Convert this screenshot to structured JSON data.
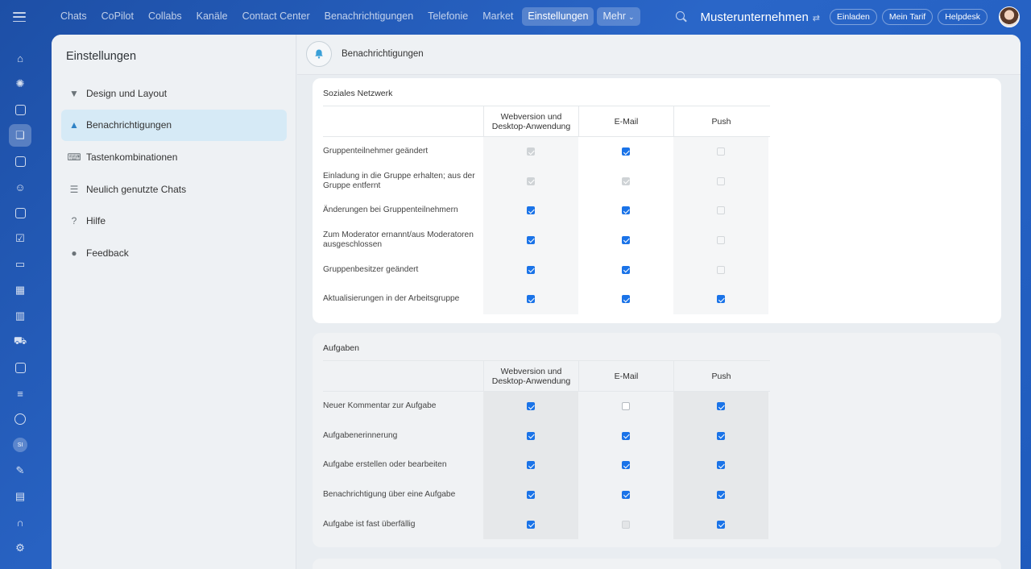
{
  "topbar": {
    "nav": [
      "Chats",
      "CoPilot",
      "Collabs",
      "Kanäle",
      "Contact Center",
      "Benachrichtigungen",
      "Telefonie",
      "Market",
      "Einstellungen"
    ],
    "more_label": "Mehr",
    "company": "Musterunternehmen",
    "buttons": [
      "Einladen",
      "Mein Tarif",
      "Helpdesk"
    ]
  },
  "rail": {
    "badge": "SI"
  },
  "sidebar": {
    "title": "Einstellungen",
    "items": [
      {
        "label": "Design und Layout",
        "icon": "brush-icon"
      },
      {
        "label": "Benachrichtigungen",
        "icon": "bell-icon"
      },
      {
        "label": "Tastenkombinationen",
        "icon": "keyboard-icon"
      },
      {
        "label": "Neulich genutzte Chats",
        "icon": "list-icon"
      },
      {
        "label": "Hilfe",
        "icon": "question-icon"
      },
      {
        "label": "Feedback",
        "icon": "chat-bubble-icon"
      }
    ]
  },
  "content": {
    "title": "Benachrichtigungen",
    "columns": [
      "Webversion und Desktop-Anwendung",
      "E-Mail",
      "Push"
    ],
    "sections": [
      {
        "title": "Soziales Netzwerk",
        "rows": [
          {
            "label": "Gruppenteilnehmer geändert",
            "web": "disabled-on",
            "email": "on",
            "push": "off-light"
          },
          {
            "label": "Einladung in die Gruppe erhalten; aus der Gruppe entfernt",
            "web": "disabled-on",
            "email": "disabled-on",
            "push": "off-light"
          },
          {
            "label": "Änderungen bei Gruppenteilnehmern",
            "web": "on",
            "email": "on",
            "push": "off-light"
          },
          {
            "label": "Zum Moderator ernannt/aus Moderatoren ausgeschlossen",
            "web": "on",
            "email": "on",
            "push": "off-light"
          },
          {
            "label": "Gruppenbesitzer geändert",
            "web": "on",
            "email": "on",
            "push": "off-light"
          },
          {
            "label": "Aktualisierungen in der Arbeitsgruppe",
            "web": "on",
            "email": "on",
            "push": "on"
          }
        ]
      },
      {
        "title": "Aufgaben",
        "rows": [
          {
            "label": "Neuer Kommentar zur Aufgabe",
            "web": "on",
            "email": "off",
            "push": "on"
          },
          {
            "label": "Aufgabenerinnerung",
            "web": "on",
            "email": "on",
            "push": "on"
          },
          {
            "label": "Aufgabe erstellen oder bearbeiten",
            "web": "on",
            "email": "on",
            "push": "on"
          },
          {
            "label": "Benachrichtigung über eine Aufgabe",
            "web": "on",
            "email": "on",
            "push": "on"
          },
          {
            "label": "Aufgabe ist fast überfällig",
            "web": "on",
            "email": "disabled",
            "push": "on"
          }
        ]
      }
    ]
  }
}
